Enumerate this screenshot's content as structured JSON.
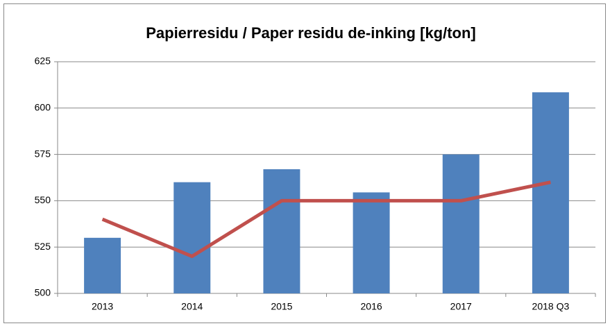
{
  "chart_data": {
    "type": "bar",
    "title": "Papierresidu / Paper residu de-inking [kg/ton]",
    "categories": [
      "2013",
      "2014",
      "2015",
      "2016",
      "2017",
      "2018 Q3"
    ],
    "series": [
      {
        "type": "bar",
        "color": "#4f81bd",
        "values": [
          530,
          560,
          567,
          554.5,
          575,
          608.5
        ]
      },
      {
        "type": "line",
        "color": "#c0504d",
        "values": [
          540,
          520,
          550,
          550,
          550,
          560
        ]
      }
    ],
    "ylim": [
      500,
      625
    ],
    "yticks": [
      500,
      525,
      550,
      575,
      600,
      625
    ],
    "grid": true
  }
}
